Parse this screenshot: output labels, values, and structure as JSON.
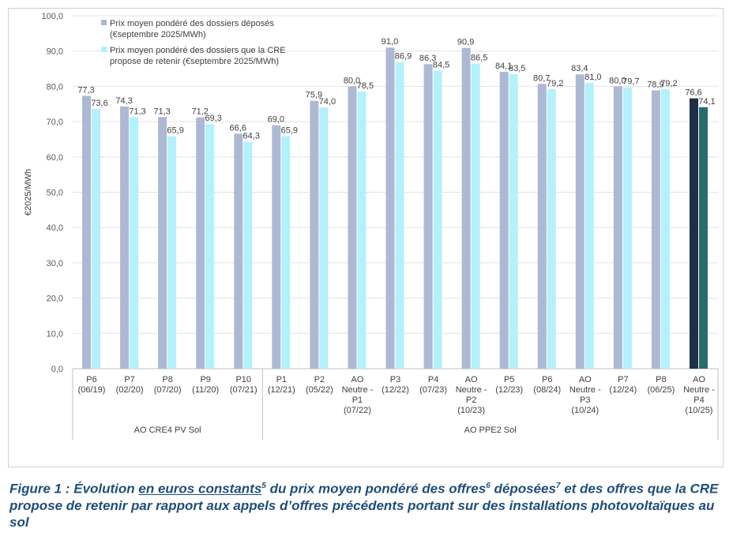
{
  "chart_data": {
    "type": "bar",
    "ylabel": "€2025/MWh",
    "ylim": [
      0,
      100
    ],
    "yticks": [
      "0,0",
      "10,0",
      "20,0",
      "30,0",
      "40,0",
      "50,0",
      "60,0",
      "70,0",
      "80,0",
      "90,0",
      "100,0"
    ],
    "legend_position": "top-left",
    "categories": [
      [
        "P6",
        "(06/19)"
      ],
      [
        "P7",
        "(02/20)"
      ],
      [
        "P8",
        "(07/20)"
      ],
      [
        "P9",
        "(11/20)"
      ],
      [
        "P10",
        "(07/21)"
      ],
      [
        "P1",
        "(12/21)"
      ],
      [
        "P2",
        "(05/22)"
      ],
      [
        "AO",
        "Neutre -",
        "P1",
        "(07/22)"
      ],
      [
        "P3",
        "(12/22)"
      ],
      [
        "P4",
        "(07/23)"
      ],
      [
        "AO",
        "Neutre -",
        "P2",
        "(10/23)"
      ],
      [
        "P5",
        "(12/23)"
      ],
      [
        "P6",
        "(08/24)"
      ],
      [
        "AO",
        "Neutre -",
        "P3",
        "(10/24)"
      ],
      [
        "P7",
        "(12/24)"
      ],
      [
        "P8",
        "(06/25)"
      ],
      [
        "AO",
        "Neutre -",
        "P4",
        "(10/25)"
      ]
    ],
    "groups": [
      {
        "label": "AO CRE4 PV Sol",
        "count": 5
      },
      {
        "label": "AO PPE2 Sol",
        "count": 12
      }
    ],
    "series": [
      {
        "name": "Prix moyen pondéré des dossiers déposés (€septembre 2025/MWh)",
        "name_lines": [
          "Prix moyen pondéré des dossiers déposés",
          "(€septembre 2025/MWh)"
        ],
        "color": "#adb9d3",
        "highlight_color": "#1f2f45",
        "values": [
          77.3,
          74.3,
          71.3,
          71.2,
          66.6,
          69.0,
          75.9,
          80.0,
          91.0,
          86.3,
          90.9,
          84.1,
          80.7,
          83.4,
          80.0,
          78.9,
          76.6
        ],
        "labels": [
          "77,3",
          "74,3",
          "71,3",
          "71,2",
          "66,6",
          "69,0",
          "75,9",
          "80,0",
          "91,0",
          "86,3",
          "90,9",
          "84,1",
          "80,7",
          "83,4",
          "80,0",
          "78,9",
          "76,6"
        ]
      },
      {
        "name": "Prix moyen pondéré des dossiers que la CRE propose de retenir (€septembre 2025/MWh)",
        "name_lines": [
          "Prix moyen pondéré des dossiers que la CRE",
          "propose de retenir (€septembre 2025/MWh)"
        ],
        "color": "#b3f1fb",
        "highlight_color": "#2a6b6b",
        "values": [
          73.6,
          71.3,
          65.9,
          69.3,
          64.3,
          65.9,
          74.0,
          78.5,
          86.9,
          84.5,
          86.5,
          83.5,
          79.2,
          81.0,
          79.7,
          79.2,
          74.1
        ],
        "labels": [
          "73,6",
          "71,3",
          "65,9",
          "69,3",
          "64,3",
          "65,9",
          "74,0",
          "78,5",
          "86,9",
          "84,5",
          "86,5",
          "83,5",
          "79,2",
          "81,0",
          "79,7",
          "79,2",
          "74,1"
        ]
      }
    ],
    "highlight_index": 16
  },
  "caption": {
    "part1": "Figure 1 : Évolution ",
    "underlined": "en euros constants",
    "sup5": "5",
    "part2": " du prix moyen pondéré des offres",
    "sup6": "6",
    "part3": " déposées",
    "sup7": "7",
    "part4": " et des offres que la CRE propose de retenir par rapport aux appels d’offres précédents portant sur des installations photovoltaïques au sol"
  }
}
